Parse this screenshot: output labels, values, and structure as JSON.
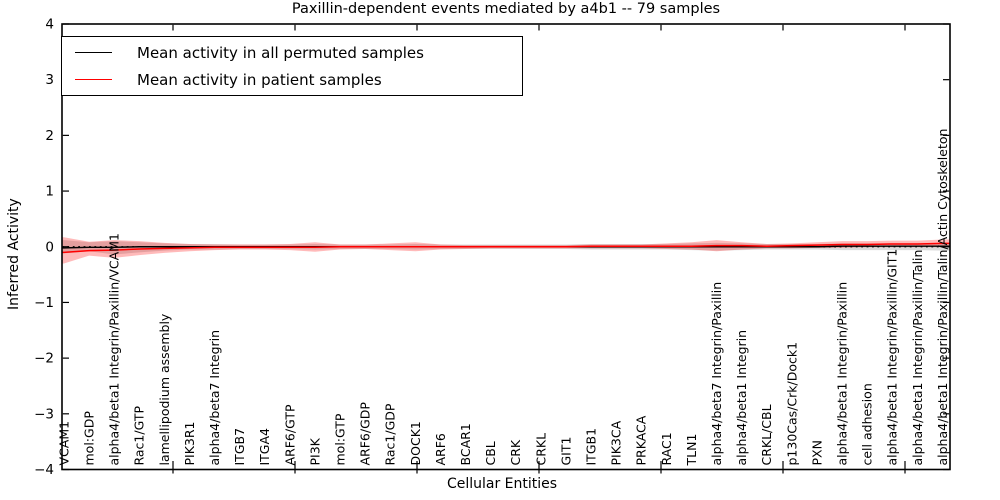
{
  "figure": {
    "title": "Paxillin-dependent events mediated by a4b1 -- 79 samples",
    "xlabel": "Cellular Entities",
    "ylabel": "Inferred Activity"
  },
  "legend": {
    "entries": [
      {
        "label": "Mean activity in all permuted samples",
        "color": "#000000"
      },
      {
        "label": "Mean activity in patient samples",
        "color": "#ff0000"
      }
    ]
  },
  "chart_data": {
    "type": "line",
    "title": "Paxillin-dependent events mediated by a4b1 -- 79 samples",
    "xlabel": "Cellular Entities",
    "ylabel": "Inferred Activity",
    "ylim": [
      -4,
      4
    ],
    "yticks": [
      -4,
      -3,
      -2,
      -1,
      0,
      1,
      2,
      3,
      4
    ],
    "grid": false,
    "legend_position": "upper left",
    "categories": [
      "VCAM1",
      "mol:GDP",
      "alpha4/beta1 Integrin/Paxillin/VCAM1",
      "Rac1/GTP",
      "lamellipodium assembly",
      "PIK3R1",
      "alpha4/beta7 Integrin",
      "ITGB7",
      "ITGA4",
      "ARF6/GTP",
      "PI3K",
      "mol:GTP",
      "ARF6/GDP",
      "Rac1/GDP",
      "DOCK1",
      "ARF6",
      "BCAR1",
      "CBL",
      "CRK",
      "CRKL",
      "GIT1",
      "ITGB1",
      "PIK3CA",
      "PRKACA",
      "RAC1",
      "TLN1",
      "alpha4/beta7 Integrin/Paxillin",
      "alpha4/beta1 Integrin",
      "CRKL/CBL",
      "p130Cas/Crk/Dock1",
      "PXN",
      "alpha4/beta1 Integrin/Paxillin",
      "cell adhesion",
      "alpha4/beta1 Integrin/Paxillin/GIT1",
      "alpha4/beta1 Integrin/Paxillin/Talin",
      "alpha4/beta1 Integrin/Paxillin/Talin/Actin Cytoskeleton"
    ],
    "series": [
      {
        "name": "Mean activity in all permuted samples",
        "color": "#000000",
        "band_color": "#aaaaaa",
        "values": [
          -0.02,
          -0.01,
          -0.01,
          0,
          0,
          0,
          0,
          0,
          0,
          0,
          0,
          0,
          0,
          0,
          0,
          0,
          0,
          0,
          0,
          0,
          0,
          0,
          0,
          0,
          0,
          0,
          0,
          0,
          0,
          0,
          0,
          0.01,
          0.01,
          0.01,
          0.01,
          0.01
        ],
        "band_upper": [
          0.12,
          0.08,
          0.1,
          0.08,
          0.06,
          0.05,
          0.05,
          0.04,
          0.04,
          0.04,
          0.05,
          0.04,
          0.04,
          0.04,
          0.05,
          0.04,
          0.04,
          0.04,
          0.04,
          0.04,
          0.04,
          0.05,
          0.05,
          0.05,
          0.05,
          0.06,
          0.07,
          0.06,
          0.05,
          0.05,
          0.05,
          0.06,
          0.06,
          0.06,
          0.06,
          0.07
        ],
        "band_lower": [
          -0.12,
          -0.08,
          -0.14,
          -0.1,
          -0.07,
          -0.05,
          -0.05,
          -0.04,
          -0.04,
          -0.04,
          -0.05,
          -0.04,
          -0.04,
          -0.04,
          -0.05,
          -0.04,
          -0.04,
          -0.04,
          -0.04,
          -0.04,
          -0.04,
          -0.05,
          -0.05,
          -0.05,
          -0.05,
          -0.06,
          -0.07,
          -0.06,
          -0.05,
          -0.05,
          -0.05,
          -0.06,
          -0.06,
          -0.06,
          -0.06,
          -0.07
        ]
      },
      {
        "name": "Mean activity in patient samples",
        "color": "#ff0000",
        "band_color": "#ff0000",
        "values": [
          -0.1,
          -0.07,
          -0.06,
          -0.04,
          -0.03,
          -0.02,
          -0.01,
          -0.01,
          -0.01,
          -0.01,
          -0.01,
          0,
          0,
          0,
          0,
          0,
          0,
          0,
          0,
          0,
          0,
          0.01,
          0.01,
          0.01,
          0.01,
          0.01,
          0.02,
          0.02,
          0.01,
          0.02,
          0.03,
          0.04,
          0.04,
          0.05,
          0.05,
          0.06
        ],
        "band_upper": [
          0.17,
          0.09,
          0.12,
          0.1,
          0.07,
          0.05,
          0.04,
          0.04,
          0.04,
          0.05,
          0.08,
          0.04,
          0.04,
          0.06,
          0.08,
          0.04,
          0.03,
          0.03,
          0.03,
          0.03,
          0.03,
          0.04,
          0.04,
          0.04,
          0.06,
          0.08,
          0.12,
          0.08,
          0.05,
          0.06,
          0.08,
          0.1,
          0.1,
          0.11,
          0.11,
          0.13
        ],
        "band_lower": [
          -0.3,
          -0.16,
          -0.2,
          -0.15,
          -0.11,
          -0.08,
          -0.06,
          -0.05,
          -0.05,
          -0.06,
          -0.09,
          -0.05,
          -0.04,
          -0.06,
          -0.08,
          -0.05,
          -0.04,
          -0.03,
          -0.03,
          -0.03,
          -0.03,
          -0.03,
          -0.03,
          -0.03,
          -0.04,
          -0.05,
          -0.08,
          -0.05,
          -0.03,
          -0.03,
          -0.02,
          -0.02,
          -0.01,
          -0.01,
          -0.01,
          -0.01
        ]
      }
    ],
    "zero_line": {
      "y": 0,
      "style": "dotted",
      "color": "#000000"
    }
  }
}
